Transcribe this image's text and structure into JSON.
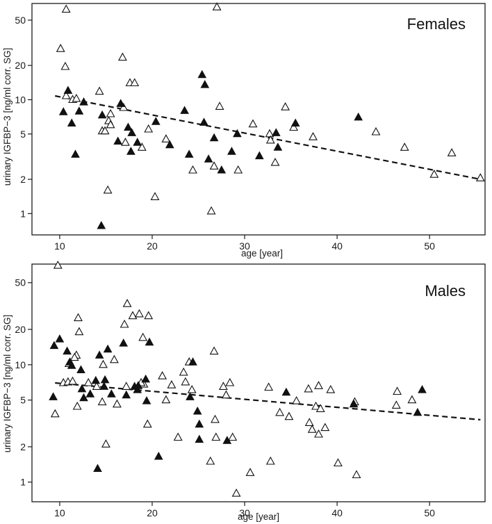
{
  "chart_data": [
    {
      "type": "scatter",
      "title": "Females",
      "xlabel": "age [year]",
      "ylabel": "urinary IGFBP−3 [ng/ml corr. SG]",
      "xlim": [
        7,
        56
      ],
      "ylim": [
        0.65,
        70
      ],
      "y_scale": "log",
      "x_ticks": [
        10,
        20,
        30,
        40,
        50
      ],
      "y_ticks": [
        1,
        2,
        5,
        10,
        20,
        50
      ],
      "trend_line": {
        "x": [
          9.5,
          55.5
        ],
        "y": [
          10.8,
          2.0
        ],
        "style": "dashed"
      },
      "series": [
        {
          "name": "open",
          "marker": "open-triangle",
          "points": [
            [
              10.7,
              62
            ],
            [
              27.0,
              65
            ],
            [
              10.1,
              28
            ],
            [
              10.6,
              19.5
            ],
            [
              16.8,
              23.5
            ],
            [
              10.7,
              10.8
            ],
            [
              11.4,
              10
            ],
            [
              11.8,
              10.2
            ],
            [
              14.3,
              11.8
            ],
            [
              17.6,
              14
            ],
            [
              18.1,
              14
            ],
            [
              16.9,
              8.5
            ],
            [
              15.5,
              7.5
            ],
            [
              15.3,
              6.5
            ],
            [
              15.5,
              6.0
            ],
            [
              14.6,
              5.3
            ],
            [
              14.9,
              5.3
            ],
            [
              17.1,
              4.2
            ],
            [
              18.9,
              3.8
            ],
            [
              19.6,
              5.5
            ],
            [
              21.5,
              4.5
            ],
            [
              20.3,
              1.4
            ],
            [
              15.2,
              1.6
            ],
            [
              24.4,
              2.4
            ],
            [
              26.7,
              2.6
            ],
            [
              27.3,
              8.7
            ],
            [
              26.4,
              1.05
            ],
            [
              29.3,
              2.4
            ],
            [
              30.9,
              6.1
            ],
            [
              32.7,
              5.0
            ],
            [
              32.8,
              4.4
            ],
            [
              33.3,
              2.8
            ],
            [
              34.4,
              8.6
            ],
            [
              35.3,
              5.7
            ],
            [
              37.4,
              4.7
            ],
            [
              44.2,
              5.2
            ],
            [
              47.3,
              3.8
            ],
            [
              50.5,
              2.2
            ],
            [
              52.4,
              3.4
            ],
            [
              55.5,
              2.05
            ]
          ]
        },
        {
          "name": "filled",
          "marker": "filled-triangle",
          "points": [
            [
              10.9,
              12
            ],
            [
              10.4,
              7.8
            ],
            [
              11.3,
              6.2
            ],
            [
              11.7,
              3.3
            ],
            [
              12.1,
              7.9
            ],
            [
              12.6,
              9.5
            ],
            [
              14.6,
              7.3
            ],
            [
              14.5,
              0.78
            ],
            [
              16.3,
              4.3
            ],
            [
              16.6,
              9.2
            ],
            [
              17.4,
              5.7
            ],
            [
              17.8,
              5.1
            ],
            [
              17.7,
              3.5
            ],
            [
              18.4,
              4.2
            ],
            [
              20.4,
              6.4
            ],
            [
              21.9,
              4.0
            ],
            [
              23.5,
              8.0
            ],
            [
              24.0,
              3.3
            ],
            [
              25.4,
              16.5
            ],
            [
              25.7,
              13.5
            ],
            [
              25.6,
              6.3
            ],
            [
              26.1,
              3.0
            ],
            [
              26.7,
              4.6
            ],
            [
              27.5,
              2.4
            ],
            [
              28.6,
              3.5
            ],
            [
              29.2,
              5.0
            ],
            [
              31.6,
              3.2
            ],
            [
              33.4,
              5.1
            ],
            [
              33.6,
              3.8
            ],
            [
              35.5,
              6.2
            ],
            [
              42.3,
              7.0
            ]
          ]
        }
      ]
    },
    {
      "type": "scatter",
      "title": "Males",
      "xlabel": "age [year]",
      "ylabel": "urinary IGFBP−3 [ng/ml corr. SG]",
      "xlim": [
        7,
        56
      ],
      "ylim": [
        0.68,
        72
      ],
      "y_scale": "log",
      "x_ticks": [
        10,
        20,
        30,
        40,
        50
      ],
      "y_ticks": [
        1,
        2,
        5,
        10,
        20,
        50
      ],
      "trend_line": {
        "x": [
          9.5,
          55.5
        ],
        "y": [
          7.0,
          3.4
        ],
        "style": "dashed"
      },
      "series": [
        {
          "name": "open",
          "marker": "open-triangle",
          "points": [
            [
              9.8,
              70
            ],
            [
              9.5,
              3.8
            ],
            [
              10.4,
              7.0
            ],
            [
              10.9,
              7.1
            ],
            [
              11.0,
              10.2
            ],
            [
              11.4,
              7.2
            ],
            [
              11.8,
              12.0
            ],
            [
              11.6,
              11.5
            ],
            [
              11.9,
              4.4
            ],
            [
              12.0,
              25
            ],
            [
              12.1,
              19
            ],
            [
              13.1,
              7.0
            ],
            [
              14.0,
              6.5
            ],
            [
              14.7,
              10.0
            ],
            [
              14.6,
              4.8
            ],
            [
              15.0,
              2.1
            ],
            [
              15.9,
              11.0
            ],
            [
              16.2,
              4.6
            ],
            [
              17.2,
              6.5
            ],
            [
              17.3,
              33
            ],
            [
              17.9,
              26
            ],
            [
              17.0,
              22
            ],
            [
              18.6,
              27
            ],
            [
              19.0,
              17
            ],
            [
              19.1,
              6.8
            ],
            [
              19.6,
              26
            ],
            [
              19.5,
              3.1
            ],
            [
              18.8,
              7.0
            ],
            [
              21.1,
              8.0
            ],
            [
              21.5,
              5.0
            ],
            [
              22.1,
              6.7
            ],
            [
              22.8,
              2.4
            ],
            [
              23.4,
              8.6
            ],
            [
              23.6,
              7.1
            ],
            [
              24.0,
              10.5
            ],
            [
              24.3,
              6.1
            ],
            [
              26.7,
              13
            ],
            [
              26.8,
              3.4
            ],
            [
              26.9,
              2.4
            ],
            [
              26.3,
              1.5
            ],
            [
              27.7,
              6.5
            ],
            [
              28.0,
              5.5
            ],
            [
              28.4,
              7.0
            ],
            [
              28.7,
              2.4
            ],
            [
              29.1,
              0.8
            ],
            [
              30.6,
              1.2
            ],
            [
              32.6,
              6.4
            ],
            [
              32.8,
              1.5
            ],
            [
              33.8,
              3.9
            ],
            [
              34.8,
              3.6
            ],
            [
              35.6,
              4.9
            ],
            [
              36.9,
              6.2
            ],
            [
              37.0,
              3.2
            ],
            [
              37.3,
              2.8
            ],
            [
              37.7,
              4.4
            ],
            [
              38.0,
              6.6
            ],
            [
              38.2,
              4.2
            ],
            [
              38.7,
              2.9
            ],
            [
              38.0,
              2.55
            ],
            [
              39.3,
              6.1
            ],
            [
              40.1,
              1.45
            ],
            [
              41.9,
              4.8
            ],
            [
              42.1,
              1.15
            ],
            [
              46.5,
              5.9
            ],
            [
              46.4,
              4.5
            ],
            [
              48.1,
              5.0
            ]
          ]
        },
        {
          "name": "filled",
          "marker": "filled-triangle",
          "points": [
            [
              9.4,
              14.5
            ],
            [
              10.0,
              16.5
            ],
            [
              9.3,
              5.3
            ],
            [
              10.8,
              13
            ],
            [
              11.1,
              10.5
            ],
            [
              11.3,
              9.8
            ],
            [
              12.3,
              9.0
            ],
            [
              12.4,
              6.2
            ],
            [
              12.6,
              5.2
            ],
            [
              13.3,
              5.6
            ],
            [
              13.9,
              7.3
            ],
            [
              14.3,
              12.0
            ],
            [
              14.9,
              7.4
            ],
            [
              14.8,
              6.5
            ],
            [
              15.2,
              13.5
            ],
            [
              15.6,
              5.6
            ],
            [
              14.1,
              1.3
            ],
            [
              16.9,
              15.2
            ],
            [
              17.2,
              5.5
            ],
            [
              18.1,
              6.5
            ],
            [
              18.5,
              6.6
            ],
            [
              18.4,
              6.1
            ],
            [
              19.3,
              7.5
            ],
            [
              19.7,
              15.5
            ],
            [
              19.4,
              4.9
            ],
            [
              20.7,
              1.65
            ],
            [
              24.4,
              10.5
            ],
            [
              24.1,
              5.3
            ],
            [
              24.9,
              4.0
            ],
            [
              25.1,
              3.1
            ],
            [
              25.1,
              2.3
            ],
            [
              28.1,
              2.25
            ],
            [
              34.5,
              5.8
            ],
            [
              41.8,
              4.6
            ],
            [
              48.7,
              3.9
            ],
            [
              49.2,
              6.1
            ]
          ]
        }
      ]
    }
  ]
}
